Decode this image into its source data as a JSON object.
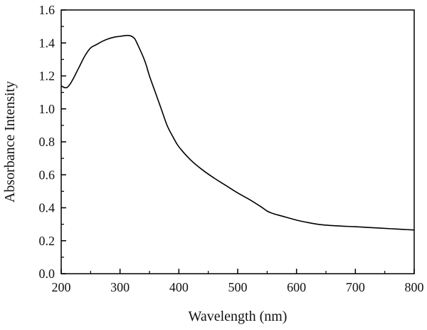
{
  "chart_data": {
    "type": "line",
    "title": "",
    "xlabel": "Wavelength (nm)",
    "ylabel": "Absorbance Intensity",
    "xlim": [
      200,
      800
    ],
    "ylim": [
      0.0,
      1.6
    ],
    "x_ticks": [
      200,
      300,
      400,
      500,
      600,
      700,
      800
    ],
    "x_tick_labels": [
      "200",
      "300",
      "400",
      "500",
      "600",
      "700",
      "800"
    ],
    "y_ticks": [
      0.0,
      0.2,
      0.4,
      0.6,
      0.8,
      1.0,
      1.2,
      1.4,
      1.6
    ],
    "y_tick_labels": [
      "0.0",
      "0.2",
      "0.4",
      "0.6",
      "0.8",
      "1.0",
      "1.2",
      "1.4",
      "1.6"
    ],
    "grid": false,
    "legend": "none",
    "line_color": "#000000",
    "series": [
      {
        "x": [
          200,
          205,
          210,
          215,
          220,
          230,
          240,
          250,
          260,
          270,
          280,
          290,
          300,
          310,
          315,
          320,
          325,
          330,
          340,
          345,
          350,
          360,
          370,
          380,
          390,
          400,
          420,
          440,
          460,
          480,
          500,
          520,
          540,
          550,
          560,
          580,
          600,
          620,
          640,
          660,
          680,
          700,
          720,
          740,
          760,
          780,
          800
        ],
        "y": [
          1.14,
          1.13,
          1.13,
          1.15,
          1.18,
          1.25,
          1.32,
          1.37,
          1.39,
          1.41,
          1.425,
          1.435,
          1.44,
          1.445,
          1.445,
          1.44,
          1.425,
          1.39,
          1.31,
          1.26,
          1.2,
          1.1,
          1.0,
          0.9,
          0.83,
          0.77,
          0.69,
          0.63,
          0.58,
          0.535,
          0.49,
          0.45,
          0.405,
          0.38,
          0.365,
          0.345,
          0.325,
          0.31,
          0.298,
          0.292,
          0.288,
          0.285,
          0.281,
          0.277,
          0.273,
          0.269,
          0.265
        ]
      }
    ]
  }
}
